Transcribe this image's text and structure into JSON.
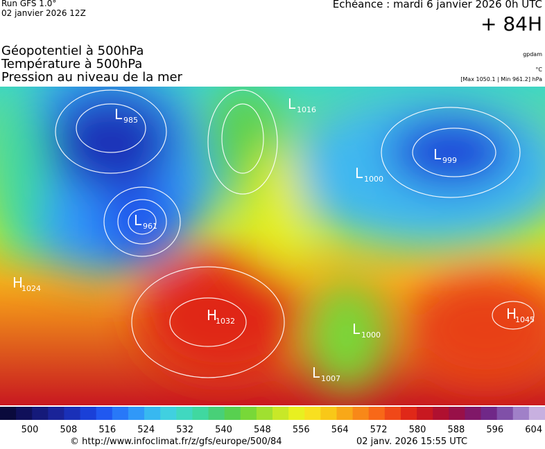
{
  "header": {
    "run": "Run GFS 1.0°",
    "run_date": "02 janvier 2026 12Z",
    "valid": "Echéance : mardi 6 janvier 2026 0h UTC",
    "lead": "+ 84H"
  },
  "fields": [
    "Géopotentiel à 500hPa",
    "Température à 500hPa",
    "Pression au niveau de la mer"
  ],
  "units": {
    "geopotential": "gpdam",
    "temperature": "°C",
    "pressure_range": "[Max 1050.1 | Min 961.2] hPa"
  },
  "pressure_centers": [
    {
      "kind": "L",
      "value": 985
    },
    {
      "kind": "L",
      "value": 1016
    },
    {
      "kind": "L",
      "value": 999
    },
    {
      "kind": "L",
      "value": 1000
    },
    {
      "kind": "L",
      "value": 961
    },
    {
      "kind": "H",
      "value": 1024
    },
    {
      "kind": "H",
      "value": 1032
    },
    {
      "kind": "H",
      "value": 1045
    },
    {
      "kind": "L",
      "value": 1000
    },
    {
      "kind": "L",
      "value": 1007
    }
  ],
  "colorbar": {
    "labels": [
      500,
      508,
      516,
      524,
      532,
      540,
      548,
      556,
      564,
      572,
      580,
      588,
      596,
      604
    ],
    "colors": [
      "#0a0a3c",
      "#10105a",
      "#151a7a",
      "#1a2398",
      "#1a30b8",
      "#1a40d8",
      "#2058f0",
      "#2878f8",
      "#3098f8",
      "#38b8f0",
      "#40d0e0",
      "#40d8c0",
      "#40d8a0",
      "#48d078",
      "#58d050",
      "#78d838",
      "#a0e030",
      "#c8e828",
      "#e8f020",
      "#f8e020",
      "#f8c818",
      "#f8a818",
      "#f88818",
      "#f86818",
      "#f04818",
      "#e02818",
      "#c81820",
      "#b01030",
      "#981048",
      "#801868",
      "#702888",
      "#8050a8",
      "#a080c8",
      "#c8b0e0"
    ]
  },
  "footer": {
    "source": "© http://www.infoclimat.fr/z/gfs/europe/500/84",
    "generated": "02 janv. 2026 15:55 UTC"
  }
}
